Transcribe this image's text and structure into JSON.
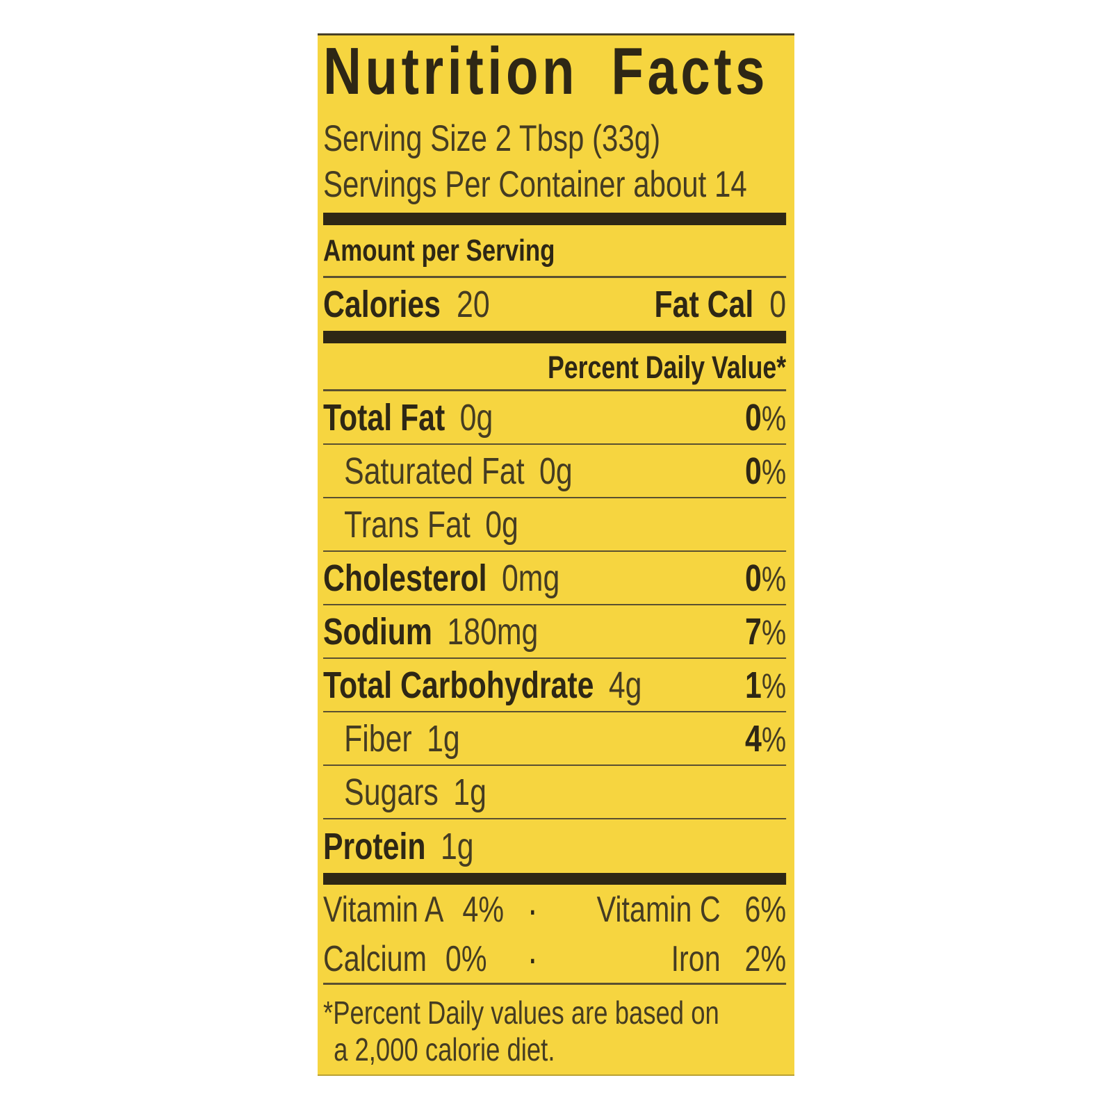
{
  "colors": {
    "label_background": "#f6d540",
    "text_dark": "#2e2715",
    "text_light": "#453c22",
    "rule": "#5a5030",
    "page_background": "#ffffff"
  },
  "label": {
    "title": "Nutrition Facts",
    "serving_size": "Serving Size 2 Tbsp (33g)",
    "servings_per_container": "Servings Per Container about 14",
    "amount_per_serving": "Amount per Serving",
    "calories": {
      "label": "Calories",
      "value": "20"
    },
    "fat_calories": {
      "label": "Fat Cal",
      "value": "0"
    },
    "percent_daily_value_heading": "Percent Daily Value*",
    "rows": [
      {
        "name": "Total Fat",
        "amount": "0g",
        "dv_num": "0",
        "dv_sym": "%"
      },
      {
        "name": "Saturated Fat",
        "amount": "0g",
        "dv_num": "0",
        "dv_sym": "%"
      },
      {
        "name": "Trans Fat",
        "amount": "0g",
        "dv_num": "",
        "dv_sym": ""
      },
      {
        "name": "Cholesterol",
        "amount": "0mg",
        "dv_num": "0",
        "dv_sym": "%"
      },
      {
        "name": "Sodium",
        "amount": "180mg",
        "dv_num": "7",
        "dv_sym": "%"
      },
      {
        "name": "Total Carbohydrate",
        "amount": "4g",
        "dv_num": "1",
        "dv_sym": "%"
      },
      {
        "name": "Fiber",
        "amount": "1g",
        "dv_num": "4",
        "dv_sym": "%"
      },
      {
        "name": "Sugars",
        "amount": "1g",
        "dv_num": "",
        "dv_sym": ""
      },
      {
        "name": "Protein",
        "amount": "1g",
        "dv_num": "",
        "dv_sym": ""
      }
    ],
    "vitamins": [
      {
        "left_name": "Vitamin A",
        "left_value": "4%",
        "separator": "·",
        "right_name": "Vitamin C",
        "right_value": "6%"
      },
      {
        "left_name": "Calcium",
        "left_value": "0%",
        "separator": "·",
        "right_name": "Iron",
        "right_value": "2%"
      }
    ],
    "footnote_line1": "*Percent Daily values are based on",
    "footnote_line2": "a 2,000 calorie diet."
  }
}
